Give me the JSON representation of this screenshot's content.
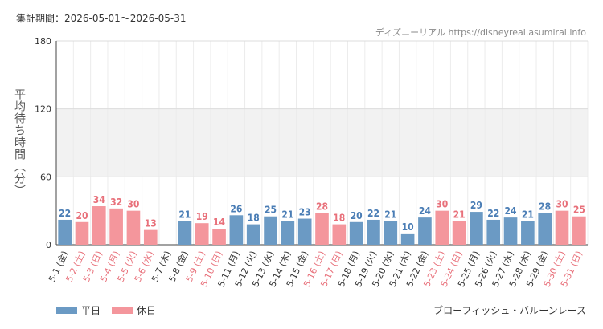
{
  "header": {
    "period": "集計期間：2026-05-01〜2026-05-31",
    "source": "ディズニーリアル https://disneyreal.asumirai.info"
  },
  "footer": {
    "caption": "ブローフィッシュ・バルーンレース"
  },
  "colors": {
    "weekday": "#6b9ac4",
    "holiday": "#f4969c",
    "holiday_text": "#e8707a",
    "weekday_text": "#4a7db5"
  },
  "chart_data": {
    "type": "bar",
    "ylabel": "平均待ち時間（分）",
    "ylim": [
      0,
      180
    ],
    "yticks": [
      0,
      60,
      120,
      180
    ],
    "grid": true,
    "legend_position": "bottom-left",
    "legend": [
      {
        "name": "平日",
        "kind": "weekday"
      },
      {
        "name": "休日",
        "kind": "holiday"
      }
    ],
    "categories": [
      "5-1 (金)",
      "5-2 (土)",
      "5-3 (日)",
      "5-4 (月)",
      "5-5 (火)",
      "5-6 (水)",
      "5-7 (木)",
      "5-8 (金)",
      "5-9 (土)",
      "5-10 (日)",
      "5-11 (月)",
      "5-12 (火)",
      "5-13 (水)",
      "5-14 (木)",
      "5-15 (金)",
      "5-16 (土)",
      "5-17 (日)",
      "5-18 (月)",
      "5-19 (火)",
      "5-20 (水)",
      "5-21 (木)",
      "5-22 (金)",
      "5-23 (土)",
      "5-24 (日)",
      "5-25 (月)",
      "5-26 (火)",
      "5-27 (水)",
      "5-28 (木)",
      "5-29 (金)",
      "5-30 (土)",
      "5-31 (日)"
    ],
    "kinds": [
      "weekday",
      "holiday",
      "holiday",
      "holiday",
      "holiday",
      "holiday",
      "weekday",
      "weekday",
      "holiday",
      "holiday",
      "weekday",
      "weekday",
      "weekday",
      "weekday",
      "weekday",
      "holiday",
      "holiday",
      "weekday",
      "weekday",
      "weekday",
      "weekday",
      "weekday",
      "holiday",
      "holiday",
      "weekday",
      "weekday",
      "weekday",
      "weekday",
      "weekday",
      "holiday",
      "holiday"
    ],
    "values": [
      22,
      20,
      34,
      32,
      30,
      13,
      null,
      21,
      19,
      14,
      26,
      18,
      25,
      21,
      23,
      28,
      18,
      20,
      22,
      21,
      10,
      24,
      30,
      21,
      29,
      22,
      24,
      21,
      28,
      30,
      25
    ]
  }
}
